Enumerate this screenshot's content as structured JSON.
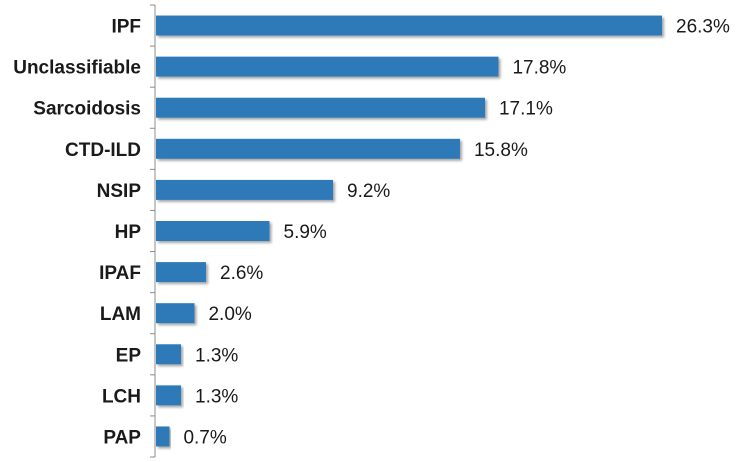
{
  "chart_data": {
    "type": "bar",
    "orientation": "horizontal",
    "title": "",
    "xlabel": "",
    "ylabel": "",
    "categories": [
      "IPF",
      "Unclassifiable",
      "Sarcoidosis",
      "CTD-ILD",
      "NSIP",
      "HP",
      "IPAF",
      "LAM",
      "EP",
      "LCH",
      "PAP"
    ],
    "values": [
      26.3,
      17.8,
      17.1,
      15.8,
      9.2,
      5.9,
      2.6,
      2.0,
      1.3,
      1.3,
      0.7
    ],
    "value_labels": [
      "26.3%",
      "17.8%",
      "17.1%",
      "15.8%",
      "9.2%",
      "5.9%",
      "2.6%",
      "2.0%",
      "1.3%",
      "1.3%",
      "0.7%"
    ],
    "xlim": [
      0,
      26.3
    ],
    "grid": false,
    "legend": "none",
    "bar_color": "#2e7ab8"
  }
}
